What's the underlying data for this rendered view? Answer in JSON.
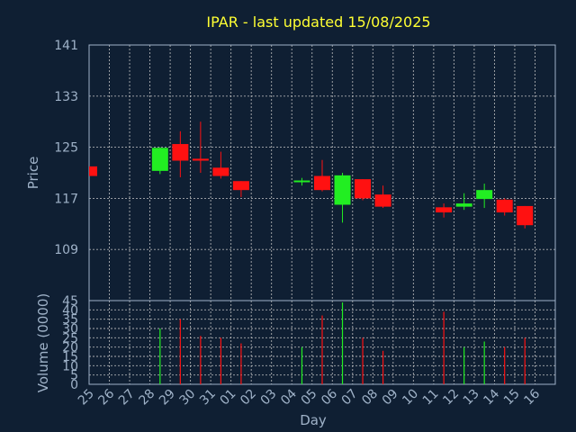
{
  "chart_data": {
    "type": "candlestick",
    "title": "IPAR - last updated 15/08/2025",
    "xlabel": "Day",
    "colors": {
      "background": "#0f1f33",
      "up": "#22ee22",
      "down": "#ff1111",
      "title": "#ffff33",
      "axis_text": "#9fb2c8",
      "grid": "#c8c8c8"
    },
    "x_categories": [
      "25",
      "26",
      "27",
      "28",
      "29",
      "30",
      "31",
      "01",
      "02",
      "03",
      "04",
      "05",
      "06",
      "07",
      "08",
      "09",
      "10",
      "11",
      "12",
      "13",
      "14",
      "15",
      "16"
    ],
    "price_panel": {
      "ylabel": "Price",
      "ylim": [
        101,
        141
      ],
      "yticks": [
        141,
        133,
        125,
        117,
        109
      ],
      "grid": true,
      "candles": [
        {
          "day": "25",
          "open": 122.0,
          "high": 122.0,
          "low": 120.5,
          "close": 120.5
        },
        {
          "day": "28",
          "open": 121.3,
          "high": 125.0,
          "low": 120.8,
          "close": 124.9
        },
        {
          "day": "29",
          "open": 125.5,
          "high": 127.5,
          "low": 120.3,
          "close": 122.9
        },
        {
          "day": "30",
          "open": 123.2,
          "high": 129.0,
          "low": 121.0,
          "close": 122.9
        },
        {
          "day": "31",
          "open": 121.8,
          "high": 124.3,
          "low": 120.1,
          "close": 120.5
        },
        {
          "day": "01",
          "open": 119.7,
          "high": 119.7,
          "low": 117.2,
          "close": 118.3
        },
        {
          "day": "04",
          "open": 119.6,
          "high": 120.2,
          "low": 119.0,
          "close": 119.8
        },
        {
          "day": "05",
          "open": 120.5,
          "high": 123.0,
          "low": 118.1,
          "close": 118.3
        },
        {
          "day": "06",
          "open": 116.0,
          "high": 121.0,
          "low": 113.2,
          "close": 120.6
        },
        {
          "day": "07",
          "open": 120.0,
          "high": 120.0,
          "low": 116.7,
          "close": 117.0
        },
        {
          "day": "08",
          "open": 117.6,
          "high": 119.0,
          "low": 115.5,
          "close": 115.7
        },
        {
          "day": "11",
          "open": 115.6,
          "high": 116.2,
          "low": 114.0,
          "close": 114.8
        },
        {
          "day": "12",
          "open": 115.7,
          "high": 117.8,
          "low": 115.2,
          "close": 116.2
        },
        {
          "day": "13",
          "open": 116.9,
          "high": 119.3,
          "low": 115.5,
          "close": 118.3
        },
        {
          "day": "14",
          "open": 116.8,
          "high": 117.0,
          "low": 114.3,
          "close": 114.8
        },
        {
          "day": "15",
          "open": 115.8,
          "high": 115.8,
          "low": 112.3,
          "close": 112.8
        }
      ]
    },
    "volume_panel": {
      "ylabel": "Volume (0000)",
      "ylim": [
        0,
        45
      ],
      "yticks": [
        45,
        40,
        35,
        30,
        25,
        20,
        15,
        10,
        5,
        0
      ],
      "grid": true,
      "bars": [
        {
          "day": "28",
          "value": 30
        },
        {
          "day": "29",
          "value": 35
        },
        {
          "day": "30",
          "value": 26
        },
        {
          "day": "31",
          "value": 25
        },
        {
          "day": "01",
          "value": 22
        },
        {
          "day": "04",
          "value": 20
        },
        {
          "day": "05",
          "value": 37
        },
        {
          "day": "06",
          "value": 44
        },
        {
          "day": "07",
          "value": 25
        },
        {
          "day": "08",
          "value": 18
        },
        {
          "day": "11",
          "value": 39
        },
        {
          "day": "12",
          "value": 20
        },
        {
          "day": "13",
          "value": 23
        },
        {
          "day": "14",
          "value": 20
        },
        {
          "day": "15",
          "value": 25
        }
      ]
    }
  }
}
